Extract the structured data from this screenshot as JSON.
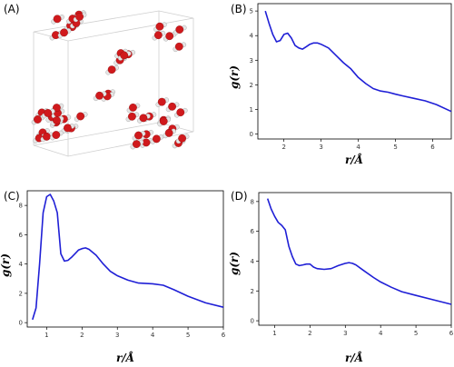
{
  "panel_labels": [
    "(A)",
    "(B)",
    "(C)",
    "(D)"
  ],
  "chart_data": [
    {
      "panel": "(B)",
      "type": "line",
      "xlabel": "r/Å",
      "ylabel": "g(r)",
      "xlim": [
        1.3,
        6.5
      ],
      "ylim": [
        -0.2,
        5.3
      ],
      "xticks": [
        2,
        3,
        4,
        5,
        6
      ],
      "yticks": [
        0,
        1,
        2,
        3,
        4,
        5
      ],
      "grid": false,
      "series": [
        {
          "color": "#1f1fd6",
          "x": [
            1.5,
            1.6,
            1.7,
            1.8,
            1.9,
            2.0,
            2.1,
            2.2,
            2.3,
            2.4,
            2.5,
            2.6,
            2.7,
            2.8,
            2.9,
            3.0,
            3.2,
            3.4,
            3.6,
            3.8,
            4.0,
            4.2,
            4.4,
            4.6,
            4.8,
            5.0,
            5.2,
            5.5,
            5.8,
            6.1,
            6.5
          ],
          "y": [
            5.0,
            4.5,
            4.05,
            3.75,
            3.8,
            4.05,
            4.1,
            3.9,
            3.6,
            3.5,
            3.45,
            3.55,
            3.65,
            3.7,
            3.7,
            3.65,
            3.5,
            3.2,
            2.9,
            2.65,
            2.3,
            2.05,
            1.85,
            1.75,
            1.7,
            1.62,
            1.55,
            1.45,
            1.35,
            1.2,
            0.92
          ]
        }
      ]
    },
    {
      "panel": "(C)",
      "type": "line",
      "xlabel": "r/Å",
      "ylabel": "g(r)",
      "xlim": [
        0.45,
        6.0
      ],
      "ylim": [
        -0.3,
        9.0
      ],
      "xticks": [
        1,
        2,
        3,
        4,
        5,
        6
      ],
      "yticks": [
        0,
        2,
        4,
        6,
        8
      ],
      "grid": false,
      "series": [
        {
          "color": "#1f1fd6",
          "x": [
            0.6,
            0.7,
            0.8,
            0.9,
            1.0,
            1.1,
            1.2,
            1.3,
            1.4,
            1.5,
            1.6,
            1.7,
            1.8,
            1.9,
            2.0,
            2.1,
            2.2,
            2.4,
            2.6,
            2.8,
            3.0,
            3.3,
            3.6,
            4.0,
            4.3,
            4.6,
            5.0,
            5.5,
            6.0
          ],
          "y": [
            0.2,
            1.0,
            4.0,
            7.5,
            8.6,
            8.75,
            8.3,
            7.5,
            4.7,
            4.2,
            4.25,
            4.45,
            4.7,
            4.95,
            5.05,
            5.1,
            5.0,
            4.6,
            4.0,
            3.5,
            3.2,
            2.9,
            2.7,
            2.65,
            2.55,
            2.25,
            1.8,
            1.35,
            1.05
          ]
        }
      ]
    },
    {
      "panel": "(D)",
      "type": "line",
      "xlabel": "r/Å",
      "ylabel": "g(r)",
      "xlim": [
        0.55,
        6.0
      ],
      "ylim": [
        -0.3,
        8.6
      ],
      "xticks": [
        1,
        2,
        3,
        4,
        5,
        6
      ],
      "yticks": [
        0,
        2,
        4,
        6,
        8
      ],
      "grid": false,
      "series": [
        {
          "color": "#1f1fd6",
          "x": [
            0.8,
            0.9,
            1.0,
            1.1,
            1.2,
            1.3,
            1.4,
            1.5,
            1.6,
            1.7,
            1.8,
            1.9,
            2.0,
            2.1,
            2.2,
            2.4,
            2.6,
            2.8,
            3.0,
            3.1,
            3.2,
            3.3,
            3.5,
            3.8,
            4.0,
            4.3,
            4.6,
            5.0,
            5.5,
            6.0
          ],
          "y": [
            8.2,
            7.5,
            7.0,
            6.6,
            6.4,
            6.1,
            5.0,
            4.3,
            3.8,
            3.7,
            3.75,
            3.8,
            3.8,
            3.6,
            3.5,
            3.45,
            3.5,
            3.7,
            3.85,
            3.9,
            3.85,
            3.75,
            3.4,
            2.9,
            2.6,
            2.25,
            1.95,
            1.7,
            1.4,
            1.1
          ]
        }
      ]
    }
  ]
}
